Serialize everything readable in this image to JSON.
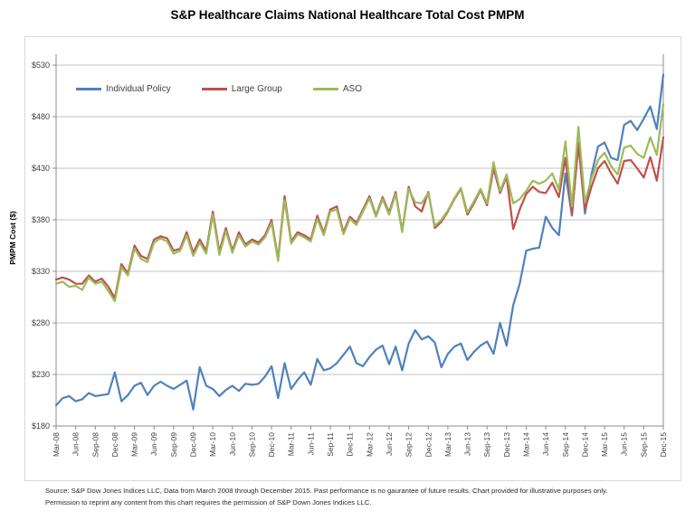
{
  "title": "S&P Healthcare Claims National Healthcare Total Cost PMPM",
  "y_axis": {
    "title": "PMPM Cost ($)",
    "tick_labels": [
      "$180",
      "$230",
      "$280",
      "$330",
      "$380",
      "$430",
      "$480",
      "$530"
    ],
    "tick_values": [
      180,
      230,
      280,
      330,
      380,
      430,
      480,
      530
    ]
  },
  "x_axis": {
    "tick_labels": [
      "Mar-08",
      "Jun-08",
      "Sep-08",
      "Dec-08",
      "Mar-09",
      "Jun-09",
      "Sep-09",
      "Dec-09",
      "Mar-10",
      "Jun-10",
      "Sep-10",
      "Dec-10",
      "Mar-11",
      "Jun-11",
      "Sep-11",
      "Dec-11",
      "Mar-12",
      "Jun-12",
      "Sep-12",
      "Dec-12",
      "Mar-13",
      "Jun-13",
      "Sep-13",
      "Dec-13",
      "Mar-14",
      "Jun-14",
      "Sep-14",
      "Dec-14",
      "Mar-15",
      "Jun-15",
      "Sep-15",
      "Dec-15"
    ]
  },
  "legend": {
    "items": [
      {
        "label": "Individual Policy",
        "color": "#4F81BD"
      },
      {
        "label": "Large Group",
        "color": "#C0504D"
      },
      {
        "label": "ASO",
        "color": "#9BBB59"
      }
    ]
  },
  "footer": {
    "line1": "Source: S&P Dow Jones Indices LLC, Data from March 2008 through December 2015. Past performance is no gaurantee of future results. Chart provided for illustrative purposes only.",
    "line2": "Permission to reprint  any content from this chart requires the permission of S&P Down Jones Indices LLC."
  },
  "colors": {
    "gridline": "#c3c3c3",
    "axis": "#8c8c8c",
    "tick_text": "#404040",
    "border": "#d9d9d9"
  },
  "chart_data": {
    "type": "line",
    "title": "S&P Healthcare Claims National Healthcare Total Cost PMPM",
    "ylabel": "PMPM Cost ($)",
    "ylim": [
      180,
      530
    ],
    "ytick_step": 50,
    "grid": true,
    "legend_position": "top-left-inside",
    "x_tick_labels": [
      "Mar-08",
      "Jun-08",
      "Sep-08",
      "Dec-08",
      "Mar-09",
      "Jun-09",
      "Sep-09",
      "Dec-09",
      "Mar-10",
      "Jun-10",
      "Sep-10",
      "Dec-10",
      "Mar-11",
      "Jun-11",
      "Sep-11",
      "Dec-11",
      "Mar-12",
      "Jun-12",
      "Sep-12",
      "Dec-12",
      "Mar-13",
      "Jun-13",
      "Sep-13",
      "Dec-13",
      "Mar-14",
      "Jun-14",
      "Sep-14",
      "Dec-14",
      "Mar-15",
      "Jun-15",
      "Sep-15",
      "Dec-15"
    ],
    "x_months": [
      "Mar-08",
      "Apr-08",
      "May-08",
      "Jun-08",
      "Jul-08",
      "Aug-08",
      "Sep-08",
      "Oct-08",
      "Nov-08",
      "Dec-08",
      "Jan-09",
      "Feb-09",
      "Mar-09",
      "Apr-09",
      "May-09",
      "Jun-09",
      "Jul-09",
      "Aug-09",
      "Sep-09",
      "Oct-09",
      "Nov-09",
      "Dec-09",
      "Jan-10",
      "Feb-10",
      "Mar-10",
      "Apr-10",
      "May-10",
      "Jun-10",
      "Jul-10",
      "Aug-10",
      "Sep-10",
      "Oct-10",
      "Nov-10",
      "Dec-10",
      "Jan-11",
      "Feb-11",
      "Mar-11",
      "Apr-11",
      "May-11",
      "Jun-11",
      "Jul-11",
      "Aug-11",
      "Sep-11",
      "Oct-11",
      "Nov-11",
      "Dec-11",
      "Jan-12",
      "Feb-12",
      "Mar-12",
      "Apr-12",
      "May-12",
      "Jun-12",
      "Jul-12",
      "Aug-12",
      "Sep-12",
      "Oct-12",
      "Nov-12",
      "Dec-12",
      "Jan-13",
      "Feb-13",
      "Mar-13",
      "Apr-13",
      "May-13",
      "Jun-13",
      "Jul-13",
      "Aug-13",
      "Sep-13",
      "Oct-13",
      "Nov-13",
      "Dec-13",
      "Jan-14",
      "Feb-14",
      "Mar-14",
      "Apr-14",
      "May-14",
      "Jun-14",
      "Jul-14",
      "Aug-14",
      "Sep-14",
      "Oct-14",
      "Nov-14",
      "Dec-14",
      "Jan-15",
      "Feb-15",
      "Mar-15",
      "Apr-15",
      "May-15",
      "Jun-15",
      "Jul-15",
      "Aug-15",
      "Sep-15",
      "Oct-15",
      "Nov-15",
      "Dec-15"
    ],
    "series": [
      {
        "name": "Individual Policy",
        "color": "#4F81BD",
        "values": [
          200,
          207,
          209,
          204,
          206,
          212,
          209,
          210,
          211,
          232,
          204,
          210,
          219,
          222,
          210,
          219,
          223,
          219,
          216,
          220,
          224,
          196,
          237,
          219,
          216,
          209,
          215,
          219,
          214,
          221,
          220,
          221,
          228,
          238,
          207,
          241,
          216,
          225,
          232,
          220,
          245,
          234,
          236,
          241,
          249,
          257,
          241,
          238,
          247,
          254,
          258,
          240,
          257,
          234,
          260,
          273,
          264,
          267,
          261,
          237,
          250,
          257,
          260,
          244,
          252,
          258,
          262,
          250,
          280,
          258,
          297,
          318,
          350,
          352,
          353,
          383,
          372,
          365,
          425,
          384,
          455,
          386,
          424,
          451,
          455,
          440,
          438,
          472,
          476,
          467,
          478,
          490,
          468,
          521
        ]
      },
      {
        "name": "Large Group",
        "color": "#C0504D",
        "values": [
          322,
          324,
          322,
          318,
          318,
          326,
          320,
          323,
          315,
          304,
          337,
          328,
          355,
          345,
          342,
          361,
          364,
          362,
          350,
          352,
          368,
          348,
          361,
          350,
          388,
          349,
          372,
          350,
          368,
          356,
          361,
          358,
          365,
          380,
          342,
          403,
          359,
          368,
          365,
          361,
          384,
          367,
          390,
          393,
          368,
          383,
          377,
          390,
          403,
          384,
          402,
          387,
          407,
          369,
          412,
          393,
          388,
          407,
          372,
          378,
          388,
          400,
          410,
          385,
          396,
          409,
          394,
          430,
          406,
          422,
          371,
          390,
          405,
          412,
          407,
          406,
          416,
          402,
          440,
          385,
          453,
          390,
          412,
          430,
          437,
          425,
          415,
          437,
          438,
          430,
          421,
          441,
          418,
          460
        ]
      },
      {
        "name": "ASO",
        "color": "#9BBB59",
        "values": [
          318,
          320,
          315,
          316,
          312,
          324,
          318,
          320,
          311,
          301,
          334,
          326,
          352,
          342,
          339,
          358,
          362,
          359,
          347,
          350,
          365,
          345,
          358,
          347,
          385,
          346,
          369,
          348,
          365,
          354,
          359,
          356,
          363,
          377,
          340,
          399,
          357,
          366,
          363,
          359,
          381,
          365,
          388,
          390,
          366,
          381,
          375,
          388,
          401,
          383,
          400,
          385,
          405,
          368,
          410,
          397,
          396,
          406,
          374,
          380,
          389,
          401,
          411,
          387,
          398,
          410,
          396,
          436,
          408,
          424,
          396,
          400,
          408,
          418,
          415,
          418,
          425,
          409,
          456,
          393,
          470,
          397,
          420,
          438,
          445,
          432,
          424,
          450,
          452,
          444,
          440,
          460,
          443,
          492
        ]
      }
    ]
  }
}
